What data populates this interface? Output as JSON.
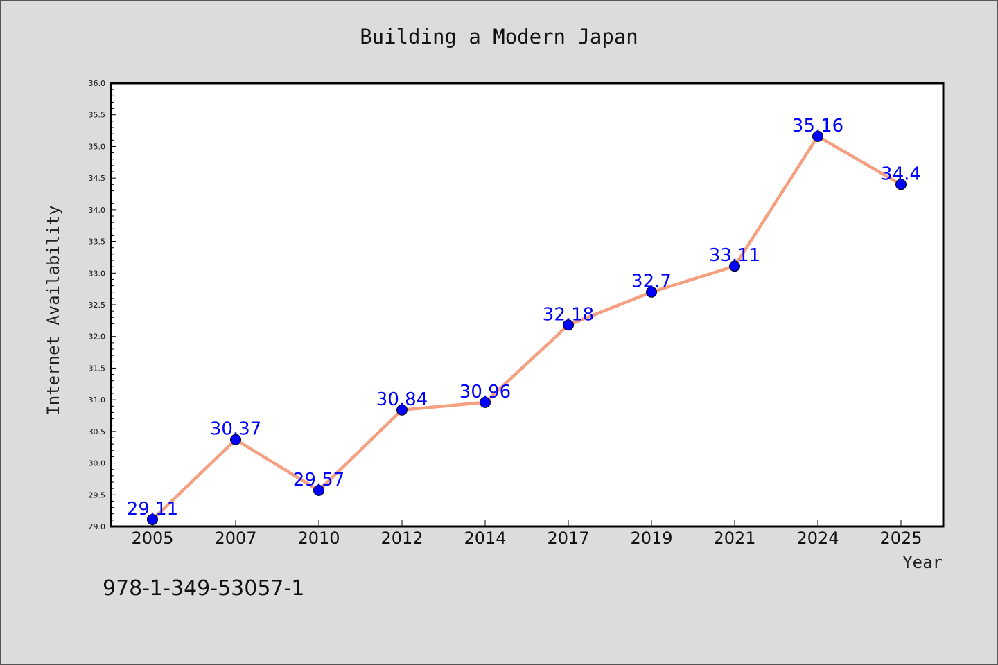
{
  "chart_data": {
    "type": "line",
    "title": "Building a Modern Japan",
    "xlabel": "Year",
    "ylabel": "Internet Availability",
    "categories": [
      "2005",
      "2007",
      "2010",
      "2012",
      "2014",
      "2017",
      "2019",
      "2021",
      "2024",
      "2025"
    ],
    "values": [
      29.11,
      30.37,
      29.57,
      30.84,
      30.96,
      32.18,
      32.7,
      33.11,
      35.16,
      34.4
    ],
    "data_labels": [
      "29.11",
      "30.37",
      "29.57",
      "30.84",
      "30.96",
      "32.18",
      "32.7",
      "33.11",
      "35.16",
      "34.4"
    ],
    "yticks": [
      "29.0",
      "29.5",
      "30.0",
      "30.5",
      "31.0",
      "31.5",
      "32.0",
      "32.5",
      "33.0",
      "33.5",
      "34.0",
      "34.5",
      "35.0",
      "35.5",
      "36.0"
    ],
    "ylim": [
      29.0,
      36.0
    ],
    "grid": false,
    "line_color": "#f4a081",
    "marker_color": "#0000ff",
    "label_color": "#0000ff"
  },
  "footnote": "978-1-349-53057-1"
}
